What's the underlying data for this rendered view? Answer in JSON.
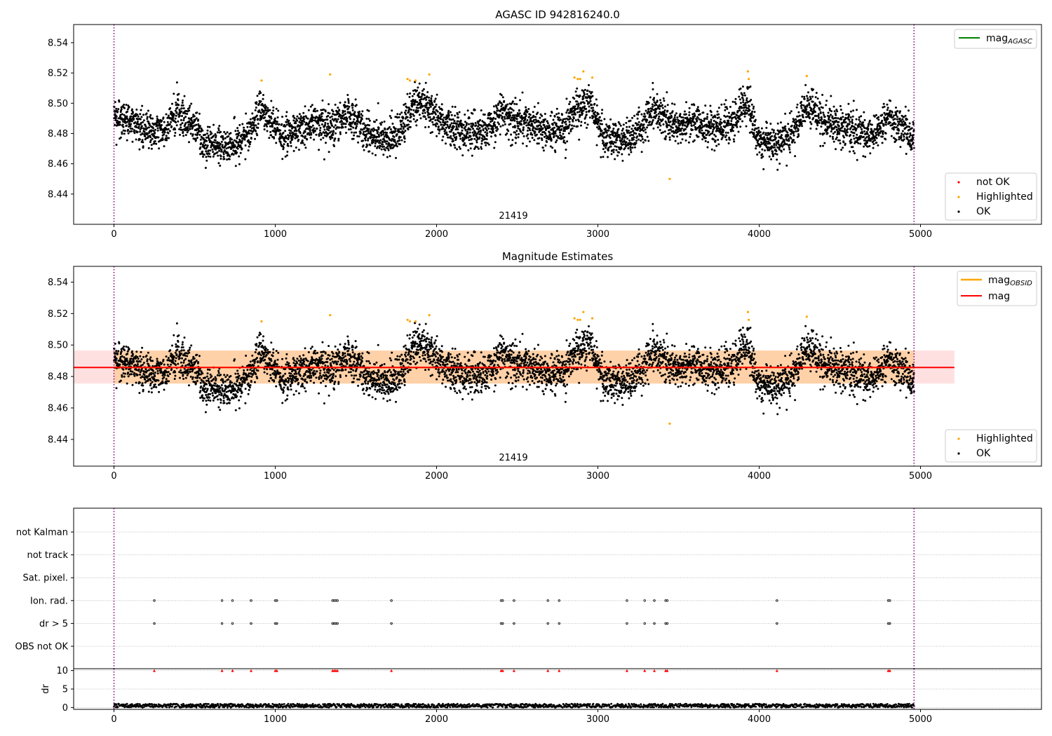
{
  "figure": {
    "background": "#ffffff"
  },
  "chart_data": [
    {
      "type": "scatter",
      "title": "AGASC ID 942816240.0",
      "xlabel": "",
      "ylabel": "",
      "xlim": [
        -250,
        5750
      ],
      "ylim": [
        8.42,
        8.552
      ],
      "xticks": [
        0,
        1000,
        2000,
        3000,
        4000,
        5000
      ],
      "yticks": [
        8.44,
        8.46,
        8.48,
        8.5,
        8.52,
        8.54
      ],
      "obsid_label": "21419",
      "vlines": [
        0,
        4960
      ],
      "vline_color": "#800080",
      "lines": [
        {
          "name": "mag",
          "name_sub": "AGASC",
          "color": "#008000"
        }
      ],
      "legend_top": "top-right",
      "legend_bottom": "bottom-right",
      "series": [
        {
          "name": "not OK",
          "color": "#ff0000",
          "points": []
        },
        {
          "name": "Highlighted",
          "color": "#ffa500",
          "points": [
            [
              915,
              8.515
            ],
            [
              1340,
              8.519
            ],
            [
              1820,
              8.516
            ],
            [
              1835,
              8.515
            ],
            [
              1870,
              8.515
            ],
            [
              1955,
              8.519
            ],
            [
              2855,
              8.517
            ],
            [
              2875,
              8.516
            ],
            [
              2890,
              8.516
            ],
            [
              2910,
              8.521
            ],
            [
              2965,
              8.517
            ],
            [
              3445,
              8.45
            ],
            [
              3930,
              8.521
            ],
            [
              3935,
              8.516
            ],
            [
              4295,
              8.518
            ]
          ]
        },
        {
          "name": "OK",
          "color": "#000000",
          "n": 4950,
          "x_range": [
            0,
            4960
          ],
          "center": 8.486,
          "profile": [
            [
              0,
              8.489
            ],
            [
              80,
              8.49
            ],
            [
              200,
              8.481
            ],
            [
              300,
              8.483
            ],
            [
              400,
              8.493
            ],
            [
              500,
              8.486
            ],
            [
              550,
              8.474
            ],
            [
              650,
              8.472
            ],
            [
              750,
              8.472
            ],
            [
              850,
              8.482
            ],
            [
              900,
              8.497
            ],
            [
              950,
              8.49
            ],
            [
              1050,
              8.478
            ],
            [
              1150,
              8.482
            ],
            [
              1250,
              8.488
            ],
            [
              1300,
              8.483
            ],
            [
              1400,
              8.488
            ],
            [
              1450,
              8.494
            ],
            [
              1550,
              8.482
            ],
            [
              1650,
              8.476
            ],
            [
              1750,
              8.478
            ],
            [
              1820,
              8.488
            ],
            [
              1850,
              8.501
            ],
            [
              1950,
              8.497
            ],
            [
              2050,
              8.487
            ],
            [
              2150,
              8.482
            ],
            [
              2300,
              8.481
            ],
            [
              2400,
              8.494
            ],
            [
              2500,
              8.488
            ],
            [
              2650,
              8.483
            ],
            [
              2800,
              8.481
            ],
            [
              2850,
              8.495
            ],
            [
              2950,
              8.501
            ],
            [
              3050,
              8.476
            ],
            [
              3200,
              8.477
            ],
            [
              3300,
              8.488
            ],
            [
              3350,
              8.497
            ],
            [
              3450,
              8.485
            ],
            [
              3600,
              8.486
            ],
            [
              3750,
              8.484
            ],
            [
              3850,
              8.488
            ],
            [
              3930,
              8.502
            ],
            [
              3980,
              8.478
            ],
            [
              4100,
              8.473
            ],
            [
              4200,
              8.479
            ],
            [
              4300,
              8.498
            ],
            [
              4400,
              8.487
            ],
            [
              4550,
              8.484
            ],
            [
              4700,
              8.478
            ],
            [
              4800,
              8.491
            ],
            [
              4900,
              8.484
            ],
            [
              4960,
              8.475
            ]
          ]
        }
      ]
    },
    {
      "type": "scatter",
      "title": "Magnitude Estimates",
      "xlabel": "",
      "ylabel": "",
      "xlim": [
        -250,
        5750
      ],
      "ylim": [
        8.423,
        8.55
      ],
      "xticks": [
        0,
        1000,
        2000,
        3000,
        4000,
        5000
      ],
      "yticks": [
        8.44,
        8.46,
        8.48,
        8.5,
        8.52,
        8.54
      ],
      "obsid_label": "21419",
      "vlines": [
        0,
        4960
      ],
      "vline_color": "#800080",
      "lines": [
        {
          "name": "mag",
          "name_sub": "OBSID",
          "color": "#ffa500",
          "y": 8.4857,
          "x_range": [
            0,
            4960
          ],
          "band": [
            8.4755,
            8.4965
          ]
        },
        {
          "name": "mag",
          "name_sub": "",
          "color": "#ff0000",
          "y": 8.4857,
          "x_range": [
            -250,
            5210
          ],
          "band": [
            8.4755,
            8.4965
          ]
        }
      ],
      "legend_top": "top-right",
      "legend_bottom": "bottom-right",
      "series": [
        {
          "name": "Highlighted",
          "color": "#ffa500"
        },
        {
          "name": "OK",
          "color": "#000000"
        }
      ]
    },
    {
      "type": "scatter",
      "title": "",
      "xlim": [
        -250,
        5750
      ],
      "categories": [
        "not Kalman",
        "not track",
        "Sat. pixel.",
        "Ion. rad.",
        "dr > 5",
        "OBS not OK"
      ],
      "flag_x": [
        250,
        670,
        735,
        850,
        1000,
        1010,
        1355,
        1365,
        1375,
        1385,
        1720,
        2400,
        2410,
        2480,
        2690,
        2760,
        3180,
        3290,
        3350,
        3420,
        3430,
        4110,
        4800,
        4810
      ],
      "flag_rows": [
        "Ion. rad.",
        "dr > 5"
      ],
      "vlines": [
        0,
        4960
      ],
      "vline_color": "#800080"
    },
    {
      "type": "scatter",
      "title": "",
      "xlim": [
        -250,
        5750
      ],
      "ylim": [
        -0.5,
        10.5
      ],
      "yticks": [
        0,
        5,
        10
      ],
      "ylabel": "dr",
      "xticks": [
        0,
        1000,
        2000,
        3000,
        4000,
        5000
      ],
      "dr_typical": [
        0.0,
        1.0
      ],
      "clipped_marker_y": 10,
      "clipped_color": "#ff0000",
      "vlines": [
        0,
        4960
      ],
      "vline_color": "#800080"
    }
  ]
}
